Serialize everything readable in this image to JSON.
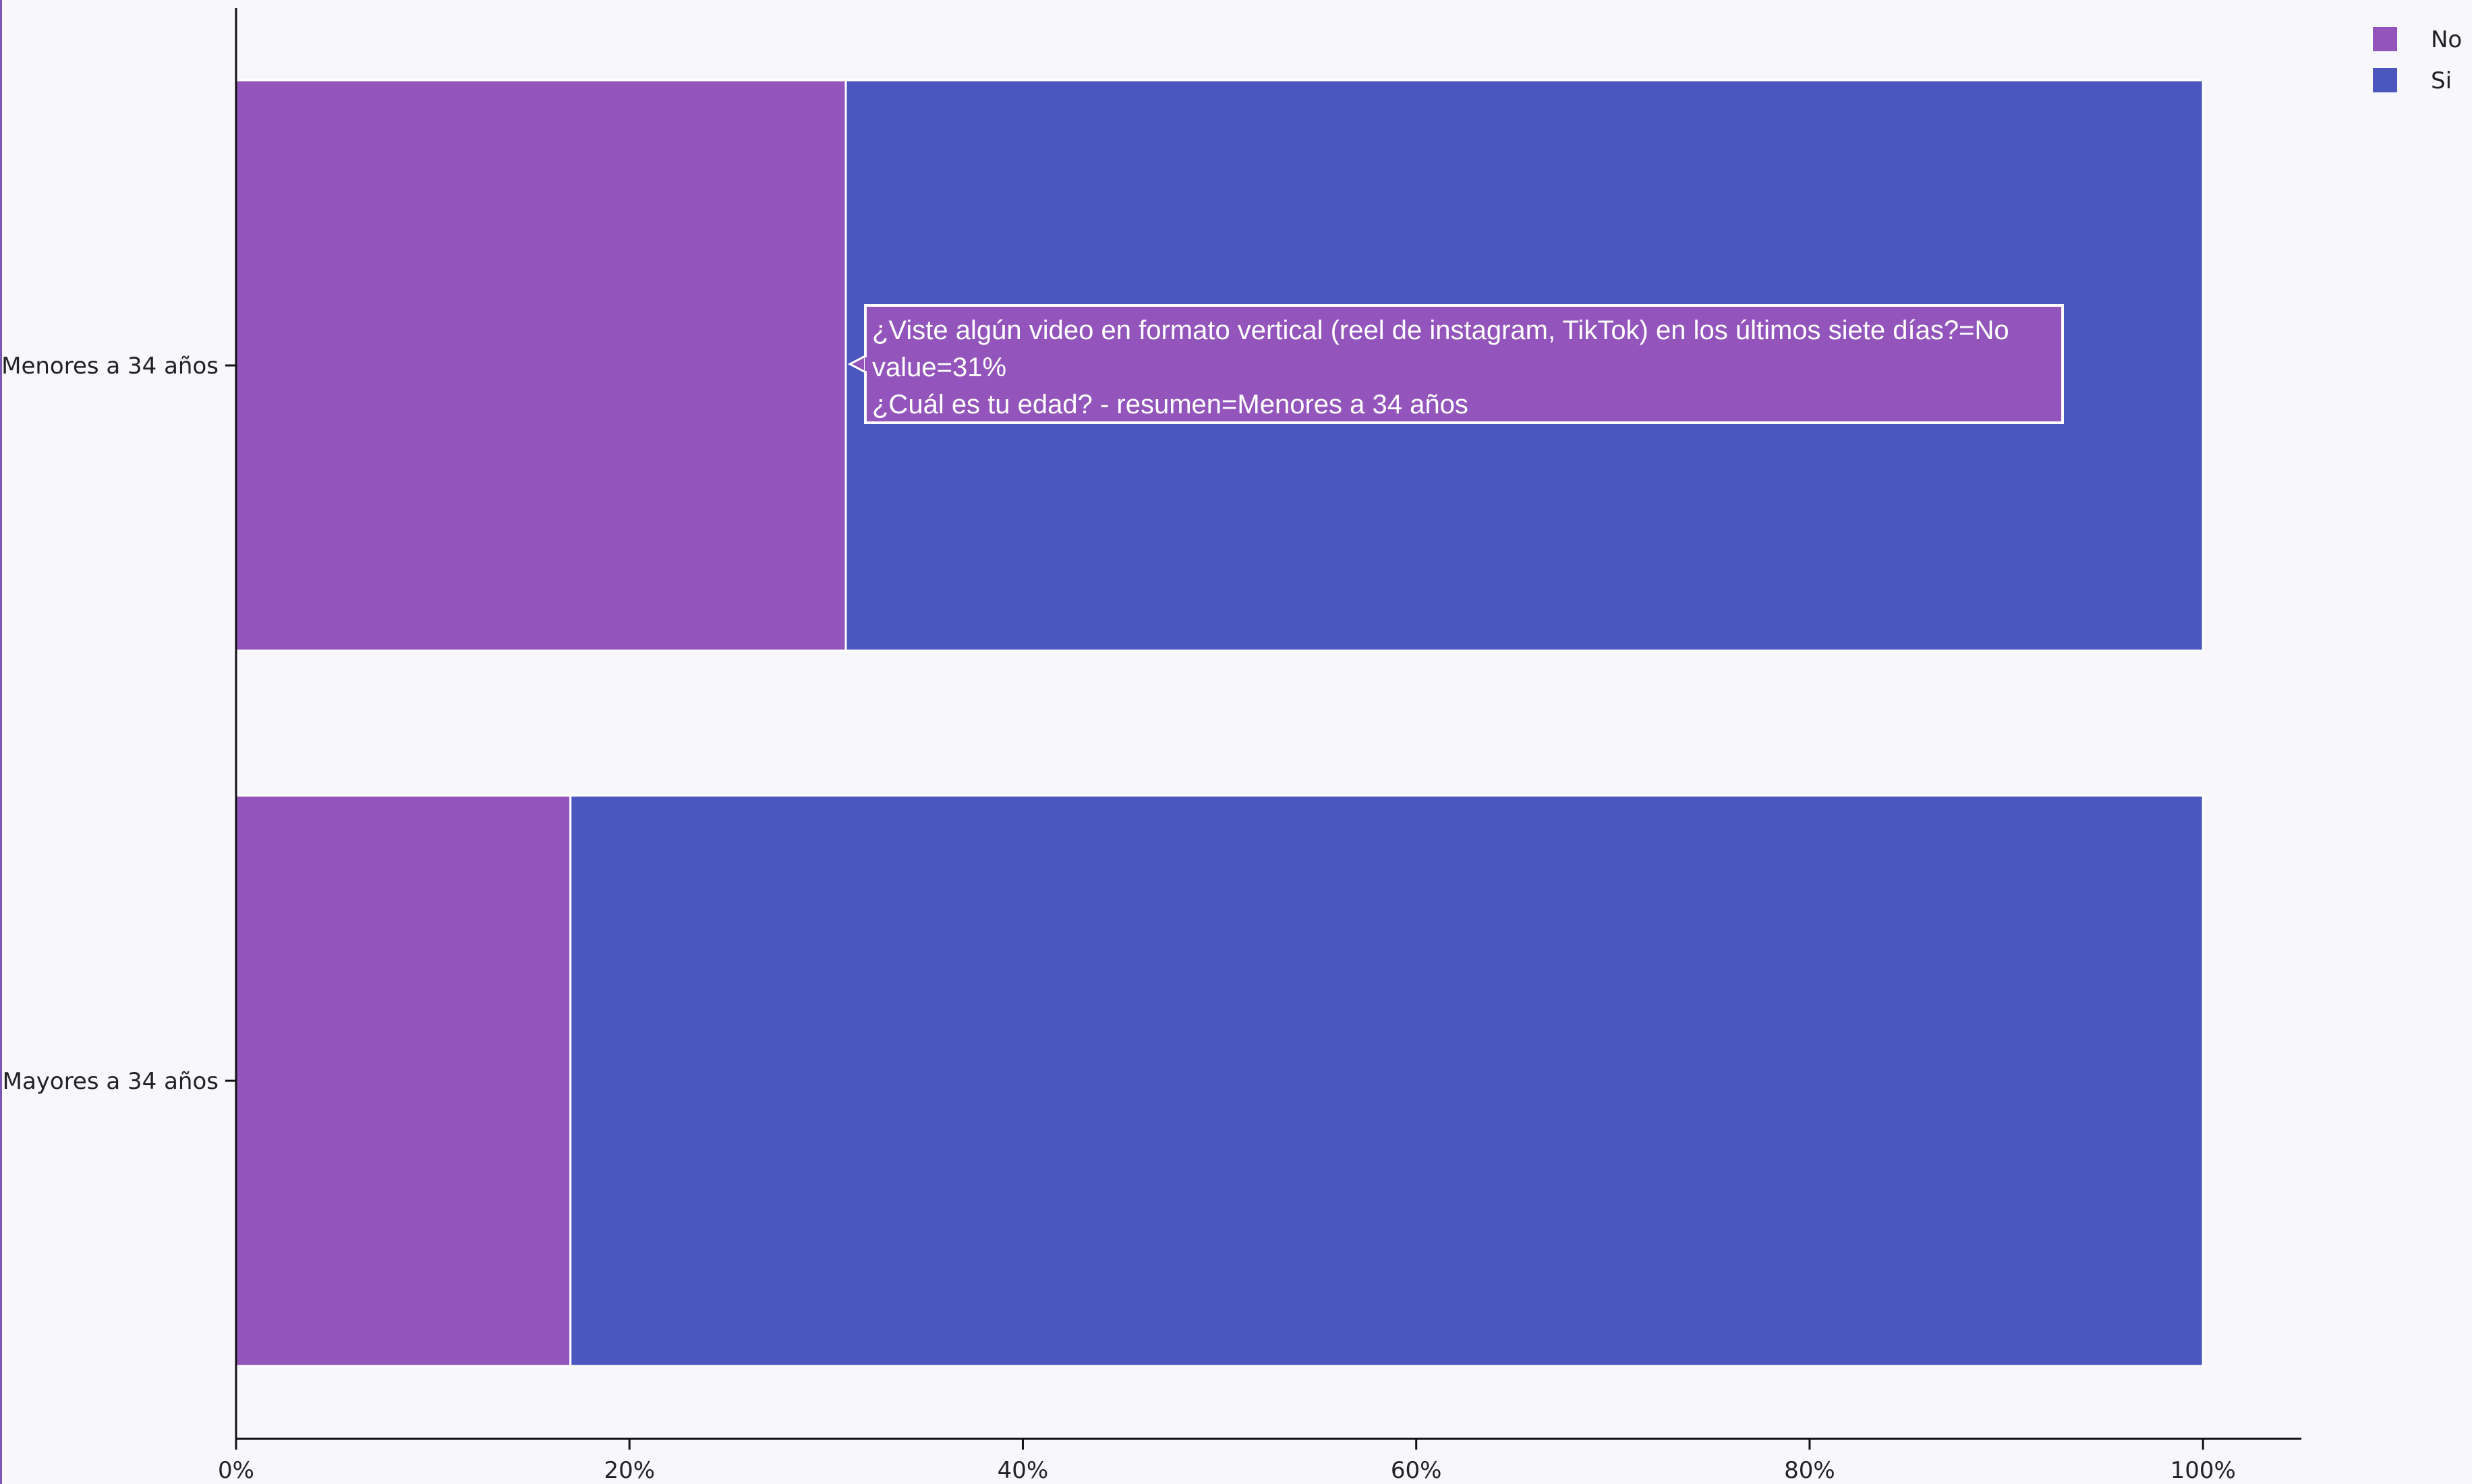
{
  "chart_data": {
    "type": "bar",
    "orientation": "horizontal",
    "barmode": "stack",
    "categories": [
      "Menores a 34 años",
      "Mayores a 34 años"
    ],
    "series": [
      {
        "name": "No",
        "color": "#9355bb",
        "values": [
          31,
          17
        ]
      },
      {
        "name": "Si",
        "color": "#4b57bf",
        "values": [
          69,
          83
        ]
      }
    ],
    "x_ticks": [
      "0%",
      "20%",
      "40%",
      "60%",
      "80%",
      "100%"
    ],
    "xlim": [
      0,
      105
    ],
    "xlabel": "",
    "ylabel": "",
    "title": "",
    "grid": false,
    "legend": {
      "position": "top-right",
      "entries": [
        "No",
        "Si"
      ]
    },
    "tooltip": {
      "series": "No",
      "category": "Menores a 34 años",
      "lines": [
        "¿Viste algún video en formato vertical (reel de instagram, TikTok) en los últimos siete días?=No",
        "value=31%",
        "¿Cuál es tu edad? - resumen=Menores a 34 años"
      ]
    }
  }
}
